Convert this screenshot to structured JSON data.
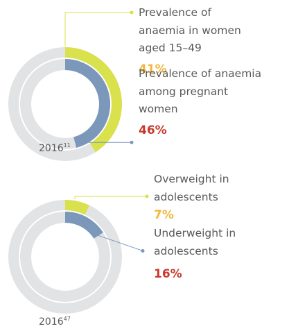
{
  "chart_data": [
    {
      "type": "donut",
      "range": [
        0,
        100
      ],
      "caption": "2016",
      "caption_note": "11",
      "track_color": "#e2e3e5",
      "series": [
        {
          "name": "Prevalence of\nanaemia in women\naged 15–49",
          "color": "#d9e14c",
          "label_color": "#f2b63d",
          "values": [
            41
          ],
          "value_labels": [
            "41%"
          ]
        },
        {
          "name": "Prevalence of anaemia\namong pregnant\nwomen",
          "color": "#7b97ba",
          "label_color": "#c9392c",
          "values": [
            46
          ],
          "value_labels": [
            "46%"
          ]
        }
      ]
    },
    {
      "type": "donut",
      "range": [
        0,
        100
      ],
      "caption": "2016",
      "caption_note": "47",
      "track_color": "#e2e3e5",
      "series": [
        {
          "name": "Overweight in\nadolescents",
          "color": "#d9e14c",
          "label_color": "#f2b63d",
          "values": [
            7
          ],
          "value_labels": [
            "7%"
          ]
        },
        {
          "name": "Underweight in\nadolescents",
          "color": "#7b97ba",
          "label_color": "#c9392c",
          "values": [
            16
          ],
          "value_labels": [
            "16%"
          ]
        }
      ]
    }
  ]
}
